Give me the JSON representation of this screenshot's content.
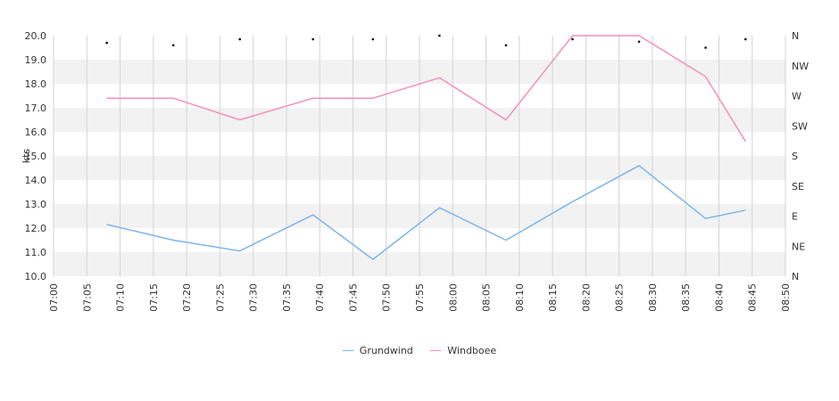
{
  "chart_data": {
    "type": "line",
    "title": "",
    "ylabel": "kts",
    "ylim": [
      10,
      20
    ],
    "y_ticks": [
      "10.0",
      "11.0",
      "12.0",
      "13.0",
      "14.0",
      "15.0",
      "16.0",
      "17.0",
      "18.0",
      "19.0",
      "20.0"
    ],
    "x_ticks": [
      "07:00",
      "07:05",
      "07:10",
      "07:15",
      "07:20",
      "07:25",
      "07:30",
      "07:35",
      "07:40",
      "07:45",
      "07:50",
      "07:55",
      "08:00",
      "08:05",
      "08:10",
      "08:15",
      "08:20",
      "08:25",
      "08:30",
      "08:35",
      "08:40",
      "08:45",
      "08:50"
    ],
    "xlim": [
      "07:00",
      "08:50"
    ],
    "direction_axis": [
      "N",
      "NE",
      "E",
      "SE",
      "S",
      "SW",
      "W",
      "NW",
      "N"
    ],
    "grid": true,
    "legend_position": "bottom",
    "series": [
      {
        "name": "Grundwind",
        "color": "#7cb5ec",
        "x": [
          "07:08",
          "07:18",
          "07:28",
          "07:39",
          "07:48",
          "07:58",
          "08:08",
          "08:18",
          "08:28",
          "08:38",
          "08:44"
        ],
        "values": [
          12.15,
          11.5,
          11.05,
          12.55,
          10.7,
          12.85,
          11.5,
          13.1,
          14.6,
          12.4,
          12.75
        ]
      },
      {
        "name": "Windboee",
        "color": "#f48fb9",
        "x": [
          "07:08",
          "07:18",
          "07:28",
          "07:39",
          "07:48",
          "07:58",
          "08:08",
          "08:18",
          "08:28",
          "08:38",
          "08:44"
        ],
        "values": [
          17.4,
          17.4,
          16.5,
          17.4,
          17.4,
          18.25,
          16.5,
          20.0,
          20.0,
          18.3,
          15.6
        ]
      },
      {
        "name": "",
        "type": "scatter",
        "color": "#000000",
        "x": [
          "07:08",
          "07:18",
          "07:28",
          "07:39",
          "07:48",
          "07:58",
          "08:08",
          "08:18",
          "08:28",
          "08:38",
          "08:44"
        ],
        "values": [
          19.7,
          19.6,
          19.85,
          19.85,
          19.85,
          20.0,
          19.6,
          19.85,
          19.75,
          19.5,
          19.85
        ]
      }
    ]
  }
}
